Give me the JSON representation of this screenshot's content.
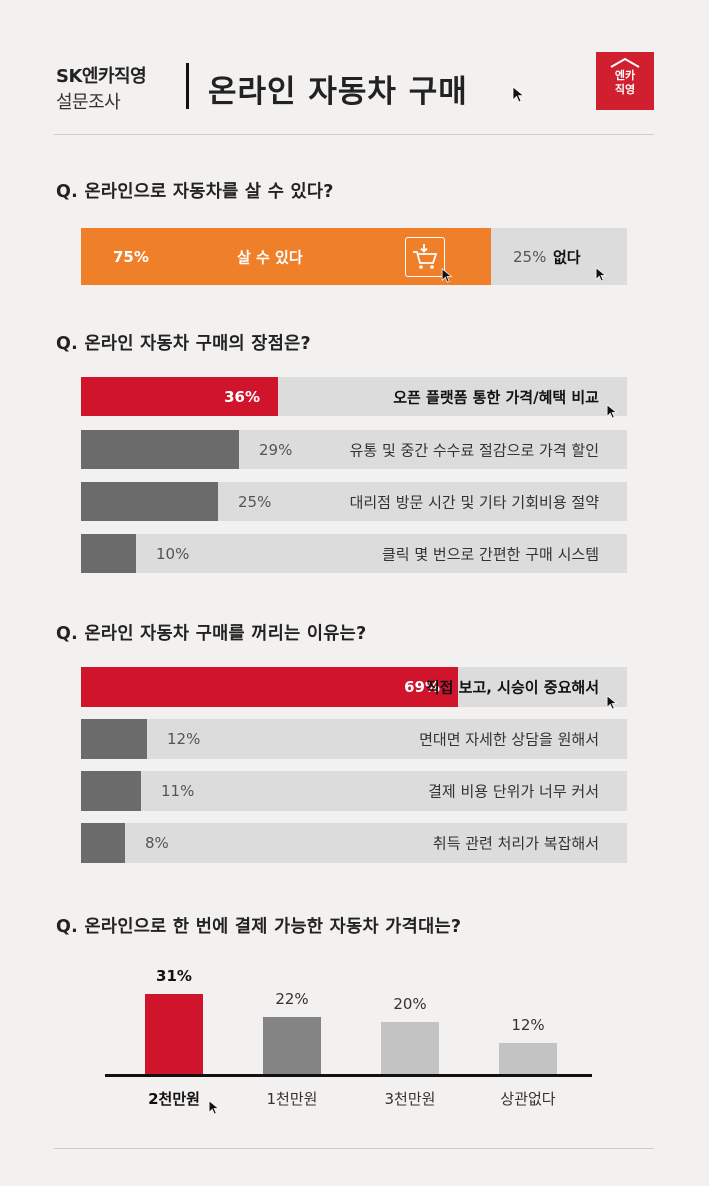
{
  "header": {
    "brand_line1": "SK엔카직영",
    "brand_line2": "설문조사",
    "title": "온라인 자동차 구매",
    "logo_line1": "엔카",
    "logo_line2": "직영"
  },
  "colors": {
    "accent_orange": "#f07f2a",
    "accent_red": "#d0142c",
    "dark_gray": "#6b6b6b",
    "mid_gray": "#848484",
    "light_gray": "#c3c3c3",
    "track": "#dcdcdc"
  },
  "icons": [
    "cursor-icon",
    "shopping-cart-icon"
  ],
  "chart_data": [
    {
      "type": "bar",
      "title": "Q. 온라인으로 자동차를 살 수 있다?",
      "categories": [
        "살 수 있다",
        "없다"
      ],
      "values": [
        75,
        25
      ],
      "value_labels": [
        "75%",
        "25%"
      ],
      "orientation": "stacked-horizontal"
    },
    {
      "type": "bar",
      "title": "Q. 온라인 자동차 구매의 장점은?",
      "categories": [
        "오픈 플랫폼 통한 가격/혜택 비교",
        "유통 및 중간 수수료 절감으로 가격 할인",
        "대리점 방문 시간 및 기타 기회비용 절약",
        "클릭 몇 번으로 간편한 구매 시스템"
      ],
      "values": [
        36,
        29,
        25,
        10
      ],
      "value_labels": [
        "36%",
        "29%",
        "25%",
        "10%"
      ],
      "orientation": "horizontal"
    },
    {
      "type": "bar",
      "title": "Q. 온라인 자동차 구매를 꺼리는 이유는?",
      "categories": [
        "직접 보고, 시승이 중요해서",
        "면대면 자세한 상담을 원해서",
        "결제 비용 단위가 너무 커서",
        "취득 관련 처리가 복잡해서"
      ],
      "values": [
        69,
        12,
        11,
        8
      ],
      "value_labels": [
        "69%",
        "12%",
        "11%",
        "8%"
      ],
      "orientation": "horizontal"
    },
    {
      "type": "bar",
      "title": "Q. 온라인으로 한 번에 결제 가능한 자동차 가격대는?",
      "categories": [
        "2천만원",
        "1천만원",
        "3천만원",
        "상관없다"
      ],
      "values": [
        31,
        22,
        20,
        12
      ],
      "value_labels": [
        "31%",
        "22%",
        "20%",
        "12%"
      ],
      "orientation": "vertical"
    }
  ]
}
